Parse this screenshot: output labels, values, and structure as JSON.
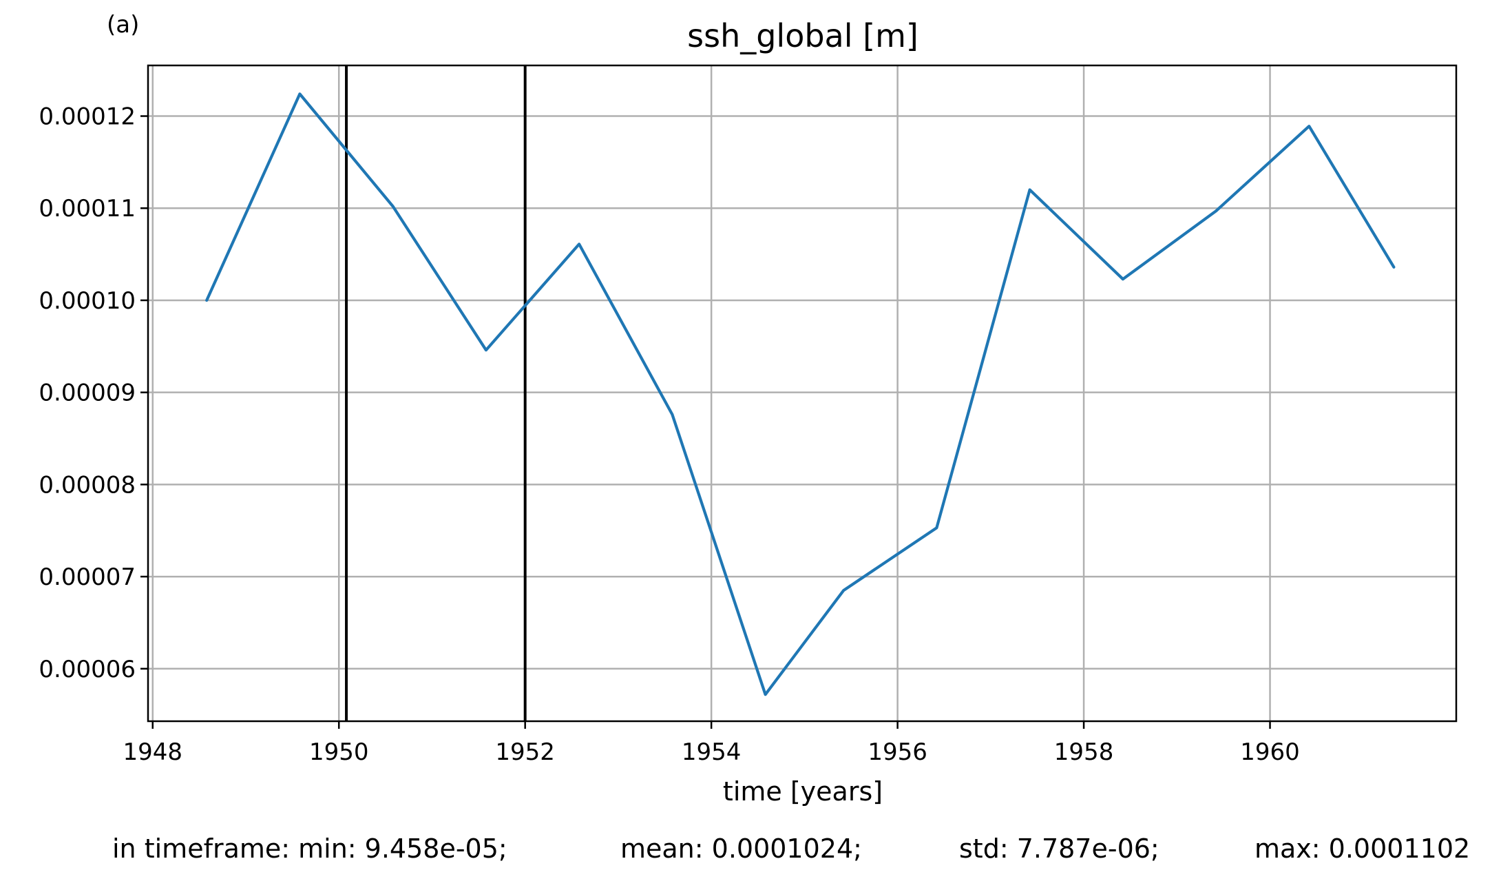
{
  "panel_label": "(a)",
  "chart_data": {
    "type": "line",
    "title": "ssh_global [m]",
    "xlabel": "time [years]",
    "ylabel": "",
    "xlim": [
      1947.95,
      1962.0
    ],
    "ylim": [
      5.43e-05,
      0.0001255
    ],
    "x_ticks": [
      1948,
      1950,
      1952,
      1954,
      1956,
      1958,
      1960
    ],
    "x_tick_labels": [
      "1948",
      "1950",
      "1952",
      "1954",
      "1956",
      "1958",
      "1960"
    ],
    "y_ticks": [
      6e-05,
      7e-05,
      8e-05,
      9e-05,
      0.0001,
      0.00011,
      0.00012
    ],
    "y_tick_labels": [
      "0.00006",
      "0.00007",
      "0.00008",
      "0.00009",
      "0.00010",
      "0.00011",
      "0.00012"
    ],
    "grid": true,
    "series": [
      {
        "color": "#1f77b4",
        "x": [
          1948.58,
          1949.58,
          1950.58,
          1951.58,
          1952.58,
          1953.58,
          1954.58,
          1955.42,
          1956.42,
          1957.42,
          1958.42,
          1959.42,
          1960.42,
          1961.33
        ],
        "y": [
          0.0001,
          0.0001224,
          0.0001102,
          9.46e-05,
          0.0001061,
          8.76e-05,
          5.72e-05,
          6.85e-05,
          7.53e-05,
          0.000112,
          0.0001023,
          0.0001097,
          0.0001189,
          0.0001036
        ]
      }
    ],
    "vlines": {
      "color": "#000000",
      "x": [
        1950.08,
        1952.0
      ]
    }
  },
  "stats": {
    "min": "in timeframe: min: 9.458e-05;",
    "mean": "mean: 0.0001024;",
    "std": "std: 7.787e-06;",
    "max": "max: 0.0001102"
  }
}
